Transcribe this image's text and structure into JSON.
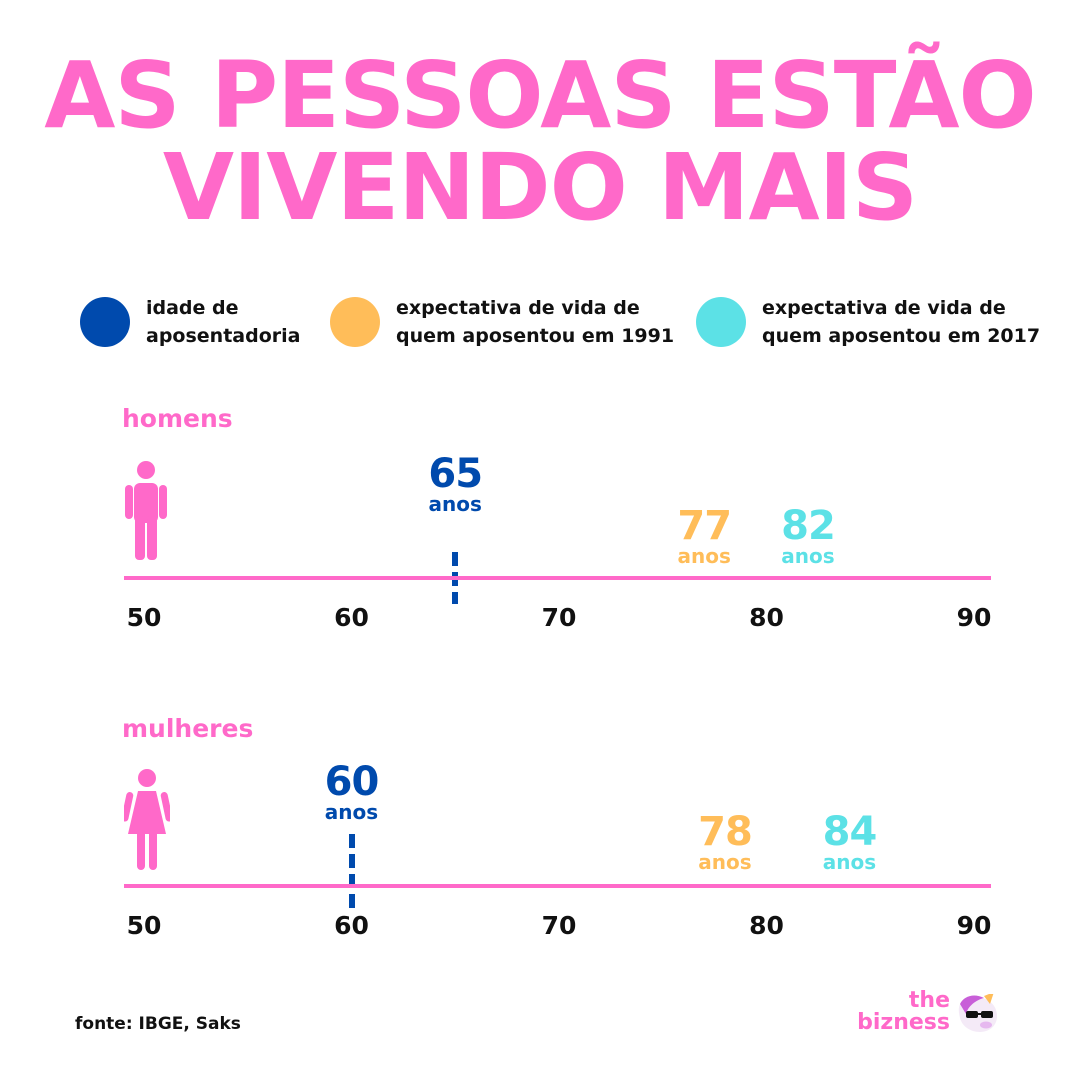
{
  "title": {
    "line1": "AS PESSOAS ESTÃO",
    "line2": "VIVENDO MAIS",
    "color": "#ff69c9"
  },
  "legend": [
    {
      "label": "idade de\naposentadoria",
      "color": "#004aad"
    },
    {
      "label": "expectativa de vida de\nquem aposentou  em 1991",
      "color": "#ffbd59"
    },
    {
      "label": "expectativa de vida de\nquem aposentou em 2017",
      "color": "#5ce1e6"
    }
  ],
  "chart_data": {
    "type": "table",
    "axis": {
      "min": 50,
      "max": 90,
      "ticks": [
        "50",
        "60",
        "70",
        "80",
        "90"
      ]
    },
    "unit": "anos",
    "series": [
      "idade de aposentadoria",
      "expectativa de vida de quem aposentou  em 1991",
      "expectativa de vida de quem aposentou em 2017"
    ],
    "groups": [
      {
        "label": "homens",
        "icon": "male-person-icon",
        "retirement_age": 65,
        "life_expectancy_1991": 77,
        "life_expectancy_2017": 82
      },
      {
        "label": "mulheres",
        "icon": "female-person-icon",
        "retirement_age": 60,
        "life_expectancy_1991": 78,
        "life_expectancy_2017": 84
      }
    ]
  },
  "colors": {
    "pink": "#ff69c9",
    "retirement": "#004aad",
    "y1991": "#ffbd59",
    "y2017": "#5ce1e6",
    "text": "#111111"
  },
  "footer": {
    "source": "fonte: IBGE, Saks",
    "brand_line1": "the",
    "brand_line2": "bizness",
    "brand_icon": "unicorn-sunglasses-icon"
  }
}
